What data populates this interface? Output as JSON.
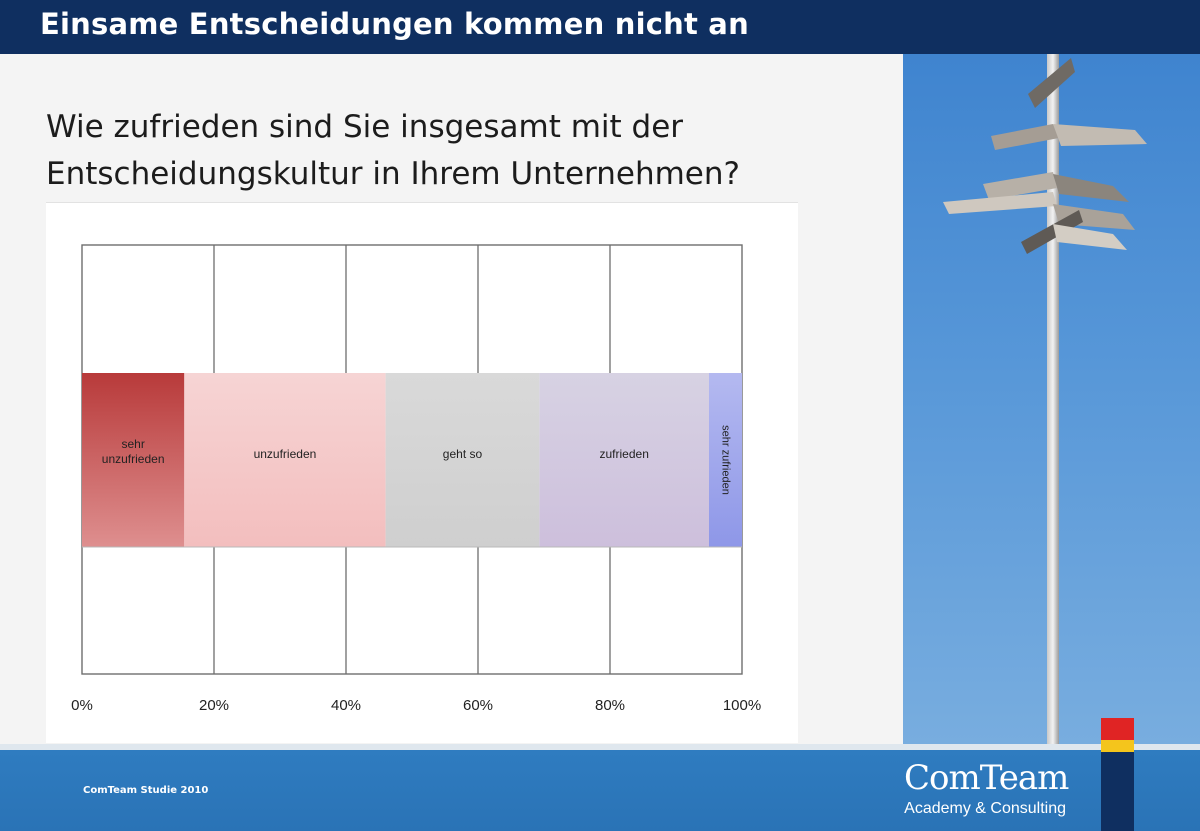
{
  "slide": {
    "title": "Einsame Entscheidungen kommen nicht an",
    "question_lines": [
      "Wie zufrieden sind Sie insgesamt mit der",
      "Entscheidungskultur in Ihrem Unternehmen?"
    ],
    "footer_text": "ComTeam Studie 2010",
    "brand_name": "ComTeam",
    "brand_tagline": "Academy & Consulting",
    "photo_icon": "signpost-icon"
  },
  "colors": {
    "title_bar": "#0f2f60",
    "footer": "#2a73b6",
    "accent_red": "#e02424",
    "accent_yellow": "#f4c51c"
  },
  "chart_data": {
    "type": "bar",
    "orientation": "horizontal",
    "stacked": true,
    "title": "",
    "xlabel": "",
    "ylabel": "",
    "xlim": [
      0,
      100
    ],
    "x_ticks": [
      "0%",
      "20%",
      "40%",
      "60%",
      "80%",
      "100%"
    ],
    "grid": true,
    "legend": "none",
    "series": [
      {
        "name": "sehr unzufrieden",
        "value": 15.5,
        "color_from": "#b83a3a",
        "color_to": "#de8f8f"
      },
      {
        "name": "unzufrieden",
        "value": 30.5,
        "color_from": "#f6d4d4",
        "color_to": "#f3bebe"
      },
      {
        "name": "geht so",
        "value": 23.3,
        "color_from": "#d9d9d9",
        "color_to": "#cfcfcf"
      },
      {
        "name": "zufrieden",
        "value": 25.7,
        "color_from": "#d7d2e3",
        "color_to": "#cdbfdc"
      },
      {
        "name": "sehr zufrieden",
        "value": 5.0,
        "color_from": "#b4b9f0",
        "color_to": "#8e97e8"
      }
    ]
  }
}
